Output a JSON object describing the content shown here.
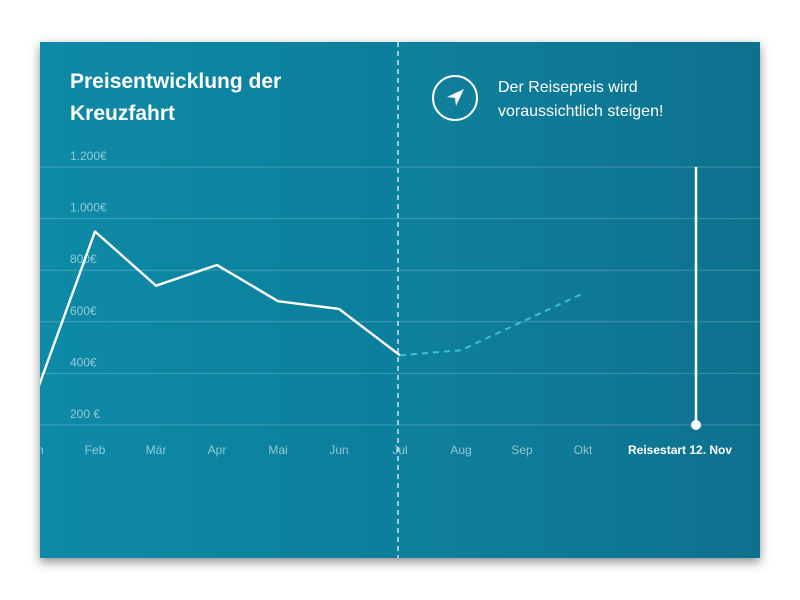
{
  "card": {
    "title_line1": "Preisentwicklung der",
    "title_line2": "Kreuzfahrt",
    "note_line1": "Der Reisepreis wird",
    "note_line2": "voraussichtlich steigen!",
    "note_icon": "navigation-arrow-icon"
  },
  "chart_data": {
    "type": "line",
    "title": "Preisentwicklung der Kreuzfahrt",
    "categories": [
      "Jan",
      "Feb",
      "Mär",
      "Apr",
      "Mai",
      "Jun",
      "Jul",
      "Aug",
      "Sep",
      "Okt"
    ],
    "series": [
      {
        "values": [
          300,
          950,
          740,
          820,
          680,
          650,
          470,
          null,
          null,
          null
        ],
        "style": "solid",
        "color": "#ffffff"
      },
      {
        "values": [
          null,
          null,
          null,
          null,
          null,
          null,
          470,
          490,
          600,
          710
        ],
        "style": "dashed",
        "color": "#3cc0d8"
      }
    ],
    "yticks": [
      {
        "value": 200,
        "label": "200 €"
      },
      {
        "value": 400,
        "label": "400€"
      },
      {
        "value": 600,
        "label": "600€"
      },
      {
        "value": 800,
        "label": "800€"
      },
      {
        "value": 1000,
        "label": "1.000€"
      },
      {
        "value": 1200,
        "label": "1.200€"
      }
    ],
    "ylim": [
      150,
      1200
    ],
    "grid": true,
    "today_marker": "Jul",
    "end_marker": {
      "label": "Reisestart 12. Nov",
      "position_after": "Okt"
    }
  }
}
